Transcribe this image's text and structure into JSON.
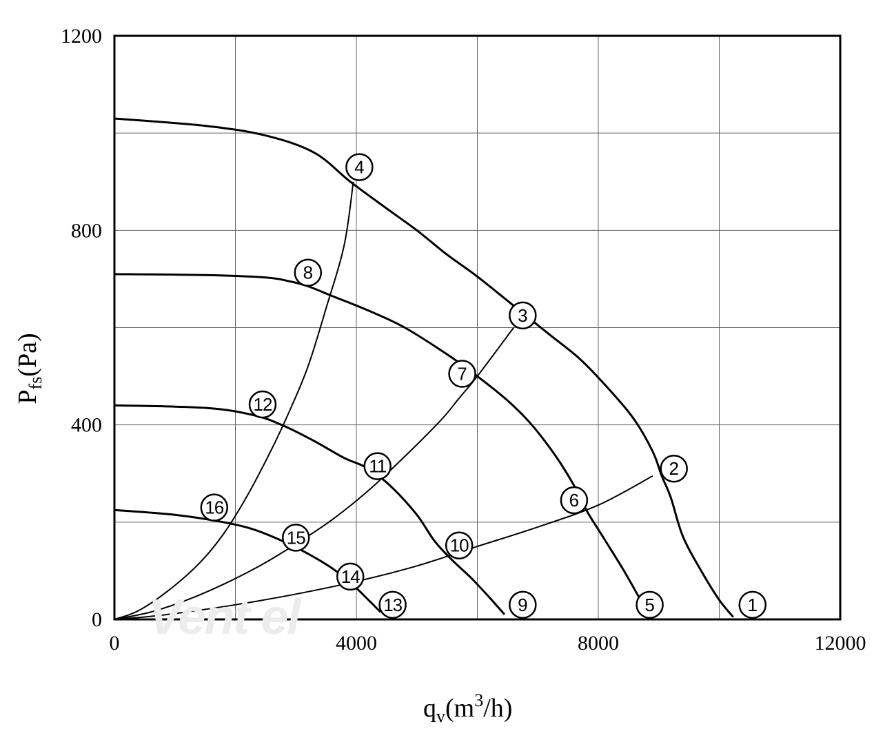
{
  "chart_data": {
    "type": "line",
    "xlabel_main": "q",
    "xlabel_sub": "v",
    "xlabel_rest": "(m",
    "xlabel_sup": "3",
    "xlabel_end": "/h)",
    "ylabel_main": "P",
    "ylabel_sub": "fs",
    "ylabel_end": "(Pa)",
    "xlim": [
      0,
      12000
    ],
    "ylim": [
      0,
      1200
    ],
    "x_ticks": [
      0,
      4000,
      8000,
      12000
    ],
    "y_ticks": [
      0,
      400,
      800,
      1200
    ],
    "x_tick_labels": [
      "0",
      "4000",
      "8000",
      "12000"
    ],
    "y_tick_labels": [
      "0",
      "400",
      "800",
      "1200"
    ],
    "grid": true,
    "watermark_logo": "Vent el",
    "fan_curves": [
      {
        "points": [
          [
            0,
            1030
          ],
          [
            1500,
            1015
          ],
          [
            2500,
            995
          ],
          [
            3300,
            960
          ],
          [
            3900,
            900
          ],
          [
            4500,
            845
          ],
          [
            5000,
            800
          ],
          [
            5500,
            750
          ],
          [
            6000,
            705
          ],
          [
            6600,
            645
          ],
          [
            7200,
            585
          ],
          [
            7700,
            535
          ],
          [
            8200,
            470
          ],
          [
            8600,
            410
          ],
          [
            8900,
            345
          ],
          [
            9050,
            295
          ],
          [
            9200,
            250
          ],
          [
            9400,
            170
          ],
          [
            9700,
            100
          ],
          [
            10000,
            40
          ],
          [
            10230,
            5
          ]
        ]
      },
      {
        "points": [
          [
            0,
            710
          ],
          [
            1500,
            708
          ],
          [
            2500,
            703
          ],
          [
            2900,
            695
          ],
          [
            3200,
            685
          ],
          [
            3600,
            665
          ],
          [
            4200,
            635
          ],
          [
            4800,
            600
          ],
          [
            5500,
            545
          ],
          [
            6000,
            500
          ],
          [
            6500,
            450
          ],
          [
            6900,
            400
          ],
          [
            7300,
            335
          ],
          [
            7600,
            275
          ],
          [
            7800,
            225
          ],
          [
            8100,
            165
          ],
          [
            8400,
            105
          ],
          [
            8700,
            40
          ],
          [
            8880,
            5
          ]
        ]
      },
      {
        "points": [
          [
            0,
            440
          ],
          [
            1500,
            435
          ],
          [
            2300,
            420
          ],
          [
            2800,
            398
          ],
          [
            3300,
            367
          ],
          [
            3800,
            332
          ],
          [
            4200,
            310
          ],
          [
            4600,
            270
          ],
          [
            5000,
            215
          ],
          [
            5300,
            160
          ],
          [
            5600,
            120
          ],
          [
            5900,
            85
          ],
          [
            6200,
            45
          ],
          [
            6450,
            10
          ]
        ]
      },
      {
        "points": [
          [
            0,
            225
          ],
          [
            1000,
            215
          ],
          [
            1800,
            200
          ],
          [
            2300,
            185
          ],
          [
            2800,
            160
          ],
          [
            3200,
            135
          ],
          [
            3600,
            105
          ],
          [
            3950,
            70
          ],
          [
            4200,
            40
          ],
          [
            4400,
            15
          ]
        ]
      }
    ],
    "system_curves": [
      {
        "points": [
          [
            0,
            0
          ],
          [
            500,
            5
          ],
          [
            1000,
            12
          ],
          [
            2000,
            30
          ],
          [
            3000,
            52
          ],
          [
            4000,
            78
          ],
          [
            5000,
            110
          ],
          [
            6000,
            150
          ],
          [
            7000,
            190
          ],
          [
            8000,
            235
          ],
          [
            8900,
            295
          ]
        ]
      },
      {
        "points": [
          [
            0,
            0
          ],
          [
            600,
            15
          ],
          [
            1200,
            40
          ],
          [
            1800,
            72
          ],
          [
            2400,
            110
          ],
          [
            3000,
            155
          ],
          [
            3600,
            205
          ],
          [
            4200,
            265
          ],
          [
            4800,
            335
          ],
          [
            5400,
            410
          ],
          [
            5700,
            455
          ],
          [
            6000,
            500
          ],
          [
            6600,
            600
          ]
        ]
      },
      {
        "points": [
          [
            0,
            0
          ],
          [
            400,
            18
          ],
          [
            900,
            60
          ],
          [
            1400,
            115
          ],
          [
            1800,
            175
          ],
          [
            2200,
            255
          ],
          [
            2600,
            350
          ],
          [
            2900,
            430
          ],
          [
            3200,
            520
          ],
          [
            3500,
            640
          ],
          [
            3800,
            770
          ],
          [
            3950,
            900
          ]
        ]
      }
    ],
    "point_markers": [
      {
        "label": "1",
        "x": 10550,
        "y": 30
      },
      {
        "label": "2",
        "x": 9250,
        "y": 310
      },
      {
        "label": "3",
        "x": 6750,
        "y": 625
      },
      {
        "label": "4",
        "x": 4050,
        "y": 930
      },
      {
        "label": "5",
        "x": 8850,
        "y": 30
      },
      {
        "label": "6",
        "x": 7600,
        "y": 245
      },
      {
        "label": "7",
        "x": 5750,
        "y": 505
      },
      {
        "label": "8",
        "x": 3200,
        "y": 713
      },
      {
        "label": "9",
        "x": 6750,
        "y": 30
      },
      {
        "label": "10",
        "x": 5700,
        "y": 152
      },
      {
        "label": "11",
        "x": 4350,
        "y": 315
      },
      {
        "label": "12",
        "x": 2450,
        "y": 442
      },
      {
        "label": "13",
        "x": 4600,
        "y": 30
      },
      {
        "label": "14",
        "x": 3900,
        "y": 88
      },
      {
        "label": "15",
        "x": 3000,
        "y": 168
      },
      {
        "label": "16",
        "x": 1650,
        "y": 230
      }
    ]
  }
}
